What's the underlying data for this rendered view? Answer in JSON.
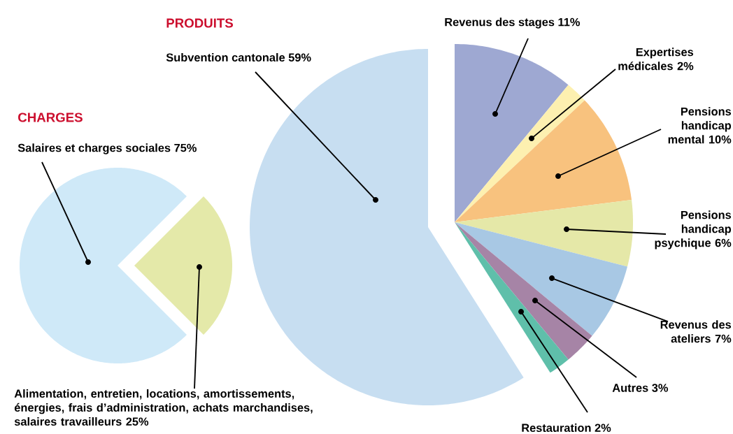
{
  "chart_data": [
    {
      "type": "pie",
      "title": "CHARGES",
      "categories": [
        "Salaires et charges sociales 75%",
        "Alimentation, entretien, locations, amortissements, énergies, frais d’administration, achats marchandises, salaires travailleurs 25%"
      ],
      "values": [
        75,
        25
      ],
      "colors": [
        "#cfe9f8",
        "#e4e9a9"
      ]
    },
    {
      "type": "pie",
      "title": "PRODUITS",
      "categories": [
        "Revenus des stages 11%",
        "Expertises médicales 2%",
        "Pensions handicap mental 10%",
        "Pensions handicap psychique 6%",
        "Revenus des ateliers 7%",
        "Autres 3%",
        "Restauration 2%",
        "Subvention cantonale 59%"
      ],
      "values": [
        11,
        2,
        10,
        6,
        7,
        3,
        2,
        59
      ],
      "colors": [
        "#9ea8d2",
        "#fdf0b0",
        "#f8c27e",
        "#e5e8a8",
        "#a8c8e4",
        "#a684a6",
        "#5fbfaa",
        "#c7def1"
      ]
    }
  ]
}
